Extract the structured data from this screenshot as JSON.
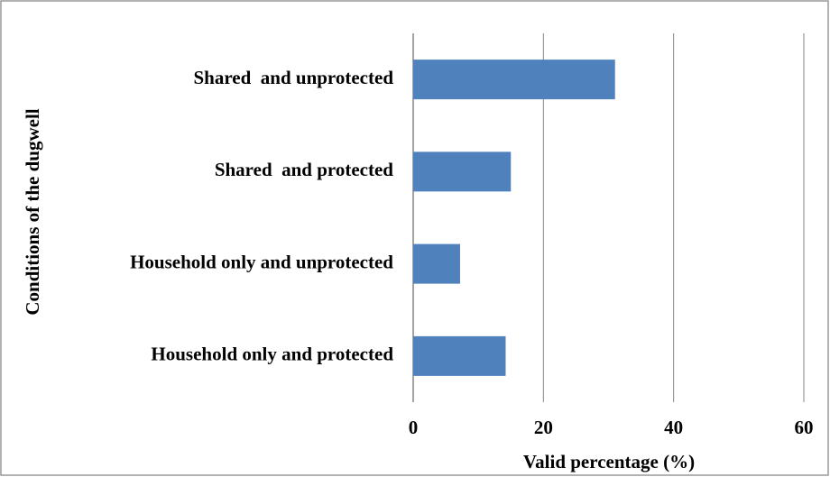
{
  "chart_data": {
    "type": "bar",
    "orientation": "horizontal",
    "categories": [
      "Shared  and unprotected",
      "Shared  and protected",
      "Household only and unprotected",
      "Household only and protected"
    ],
    "values": [
      31,
      15,
      7.2,
      14.2
    ],
    "color": "#4f81bd",
    "xlim": [
      0,
      60
    ],
    "xticks": [
      0,
      20,
      40,
      60
    ],
    "grid": true,
    "x_label": "Valid percentage (%)",
    "y_label": "Conditions of the dugwell"
  }
}
